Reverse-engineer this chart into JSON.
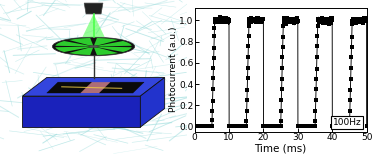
{
  "ylabel": "Photocurrent (a.u.)",
  "xlabel": "Time (ms)",
  "annotation": "100Hz",
  "xlim": [
    0,
    50
  ],
  "ylim": [
    -0.05,
    1.12
  ],
  "yticks": [
    0.0,
    0.2,
    0.4,
    0.6,
    0.8,
    1.0
  ],
  "xticks": [
    0,
    10,
    20,
    30,
    40,
    50
  ],
  "period_ms": 10,
  "high_duration": 4.2,
  "low_duration": 5.8,
  "rise_ms": 0.8,
  "fall_ms": 1.2,
  "dt": 0.02,
  "line_color": "black",
  "marker_step": 4,
  "marker_size": 2.2,
  "bg_teal": "#5ecece",
  "fiber_color": "#9edddd",
  "platform_blue_dark": "#1a22bb",
  "platform_blue_mid": "#2233cc",
  "platform_blue_top": "#3345dd",
  "wheel_color": "#111111",
  "green_spoke": "#33ee33",
  "green_beam": "#44ff44",
  "laser_dark": "#222222"
}
